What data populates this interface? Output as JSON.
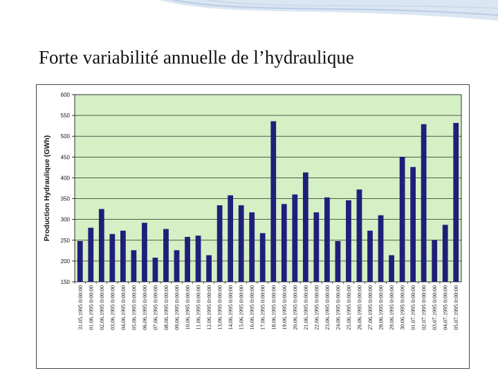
{
  "slide": {
    "title": "Forte variabilité annuelle de l’hydraulique"
  },
  "colors": {
    "plot_background": "#d4f0c4",
    "bar": "#1f1f7a",
    "grid": "#000000",
    "header_wave": "#b9cbe4"
  },
  "chart_data": {
    "type": "bar",
    "title": "",
    "xlabel": "",
    "ylabel": "Production Hydraulique (GWh)",
    "ylim": [
      150,
      600
    ],
    "yticks": [
      150,
      200,
      250,
      300,
      350,
      400,
      450,
      500,
      550,
      600
    ],
    "grid": "horizontal",
    "legend": "none",
    "categories": [
      "31.05.1995 0:00:00",
      "01.06.1995 0:00:00",
      "02.06.1995 0:00:00",
      "03.06.1995 0:00:00",
      "04.06.1995 0:00:00",
      "05.06.1995 0:00:00",
      "06.06.1995 0:00:00",
      "07.06.1995 0:00:00",
      "08.06.1995 0:00:00",
      "09.06.1995 0:00:00",
      "10.06.1995 0:00:00",
      "11.06.1995 0:00:00",
      "12.06.1995 0:00:00",
      "13.06.1995 0:00:00",
      "14.06.1995 0:00:00",
      "15.06.1995 0:00:00",
      "16.06.1995 0:00:00",
      "17.06.1995 0:00:00",
      "18.06.1995 0:00:00",
      "19.06.1995 0:00:00",
      "20.06.1995 0:00:00",
      "21.06.1995 0:00:00",
      "22.06.1995 0:00:00",
      "23.06.1995 0:00:00",
      "24.06.1995 0:00:00",
      "25.06.1995 0:00:00",
      "26.06.1995 0:00:00",
      "27.06.1995 0:00:00",
      "28.06.1995 0:00:00",
      "29.06.1995 0:00:00",
      "30.06.1995 0:00:00",
      "01.07.1995 0:00:00",
      "02.07.1995 0:00:00",
      "03.07.1995 0:00:00",
      "04.07.1995 0:00:00",
      "05.07.1995 0:00:00"
    ],
    "values": [
      248,
      280,
      325,
      265,
      273,
      226,
      292,
      208,
      277,
      226,
      258,
      261,
      214,
      334,
      358,
      334,
      317,
      267,
      536,
      337,
      360,
      413,
      317,
      353,
      248,
      346,
      372,
      273,
      310,
      214,
      450,
      426,
      529,
      251,
      287,
      532
    ]
  }
}
